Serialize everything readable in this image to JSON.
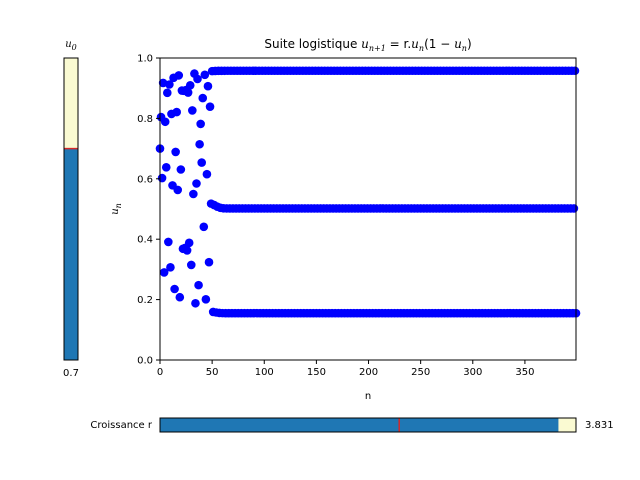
{
  "chart_data": {
    "type": "scatter",
    "title_text": "Suite logistique ",
    "title_formula": "u",
    "title_formula_parts": {
      "lhs_sub": "n+1",
      "eq": " = r.",
      "mid": "u",
      "mid_sub": "n",
      "tail_open": "(1 − ",
      "tail_u": "u",
      "tail_sub": "n",
      "tail_close": ")"
    },
    "xlabel": "n",
    "ylabel_main": "u",
    "ylabel_sub": "n",
    "xlim": [
      0,
      399
    ],
    "ylim": [
      0.0,
      1.0
    ],
    "xticks": [
      0,
      50,
      100,
      150,
      200,
      250,
      300,
      350
    ],
    "yticks": [
      0.0,
      0.2,
      0.4,
      0.6,
      0.8,
      1.0
    ],
    "marker_color": "#0000ff",
    "r": 3.831,
    "u0": 0.7,
    "n_points": 400
  },
  "sliders": {
    "u0": {
      "label_main": "u",
      "label_sub": "0",
      "value": 0.7,
      "value_text": "0.7",
      "min": 0.0,
      "max": 1.0,
      "fill_color": "#1f77b4",
      "track_color": "#fafad2",
      "marker_color": "#d62728"
    },
    "r": {
      "label": "Croissance r",
      "value": 3.831,
      "value_text": "3.831",
      "min": 0.0,
      "max": 4.0,
      "initial_value": 2.3,
      "fill_color": "#1f77b4",
      "track_color": "#fafad2",
      "marker_color": "#d62728"
    }
  }
}
